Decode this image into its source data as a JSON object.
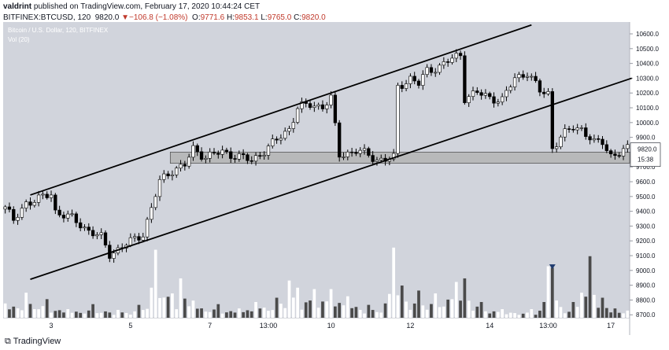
{
  "header": {
    "line1": {
      "author": "valdrint",
      "text": " published on TradingView.com, February 17, 2020 10:44:24 CET"
    },
    "line2": {
      "symbol": "BITFINEX:BTCUSD, 120",
      "last": "9820.0",
      "change_arrow": "▼",
      "change": "−106.8 (−1.08%)",
      "o_label": "O:",
      "o_val": "9771.6",
      "h_label": "H:",
      "h_val": "9853.1",
      "l_label": "L:",
      "l_val": "9765.0",
      "c_label": "C:",
      "c_val": "9820.0"
    }
  },
  "footer": {
    "brand": "TradingView"
  },
  "colors": {
    "background": "#d1d4dc",
    "bull_candle": "#ffffff",
    "bear_candle": "#000000",
    "vol_up": "#ffffff",
    "vol_down": "#4a4a4a",
    "price_tag": "#ffffff",
    "marker": "#1e3a6e",
    "support_zone": "#b4b4b4"
  },
  "chart_data": {
    "type": "candlestick",
    "title": "Bitcoin / U.S. Dollar, 120, BITFINEX",
    "subtitle": "Vol (20)",
    "y_axis": {
      "side": "right",
      "range": [
        8680,
        10680
      ],
      "ticks": [
        8700,
        8800,
        8900,
        9000,
        9100,
        9200,
        9300,
        9400,
        9500,
        9600,
        9700,
        9800,
        9900,
        10000,
        10100,
        10200,
        10300,
        10400,
        10500,
        10600
      ],
      "tick_labels": [
        "8700.0",
        "8800.0",
        "8900.0",
        "9000.0",
        "9100.0",
        "9200.0",
        "9300.0",
        "9400.0",
        "9500.0",
        "9600.0",
        "9700.0",
        "9800.0",
        "9900.0",
        "10000.0",
        "10100.0",
        "10200.0",
        "10300.0",
        "10400.0",
        "10500.0",
        "10600.0"
      ]
    },
    "x_axis": {
      "bars": 150,
      "tick_labels": [
        {
          "bar": 11,
          "label": "3"
        },
        {
          "bar": 30,
          "label": "5"
        },
        {
          "bar": 49,
          "label": "7"
        },
        {
          "bar": 63,
          "label": "13:00"
        },
        {
          "bar": 78,
          "label": "10"
        },
        {
          "bar": 97,
          "label": "12"
        },
        {
          "bar": 116,
          "label": "14"
        },
        {
          "bar": 130,
          "label": "13:00"
        },
        {
          "bar": 145,
          "label": "17"
        }
      ]
    },
    "last_price": {
      "value": 9820.0,
      "label": "9820.0",
      "countdown": "15:38"
    },
    "anchors": [
      [
        0,
        9430,
        5
      ],
      [
        2,
        9330,
        6
      ],
      [
        5,
        9460,
        6
      ],
      [
        8,
        9480,
        5
      ],
      [
        11,
        9520,
        7
      ],
      [
        12,
        9400,
        8
      ],
      [
        16,
        9350,
        5
      ],
      [
        20,
        9270,
        4
      ],
      [
        23,
        9220,
        5
      ],
      [
        25,
        9110,
        6
      ],
      [
        28,
        9160,
        3
      ],
      [
        31,
        9210,
        4
      ],
      [
        33,
        9250,
        5
      ],
      [
        35,
        9420,
        8
      ],
      [
        37,
        9600,
        9
      ],
      [
        40,
        9680,
        7
      ],
      [
        43,
        9710,
        6
      ],
      [
        45,
        9820,
        8
      ],
      [
        48,
        9770,
        5
      ],
      [
        52,
        9800,
        4
      ],
      [
        56,
        9770,
        4
      ],
      [
        59,
        9740,
        5
      ],
      [
        62,
        9810,
        4
      ],
      [
        65,
        9880,
        6
      ],
      [
        68,
        9960,
        6
      ],
      [
        70,
        10100,
        9
      ],
      [
        73,
        10120,
        6
      ],
      [
        76,
        10110,
        5
      ],
      [
        78,
        10160,
        7
      ],
      [
        80,
        9780,
        9
      ],
      [
        84,
        9810,
        4
      ],
      [
        87,
        9780,
        4
      ],
      [
        89,
        9750,
        3
      ],
      [
        91,
        9750,
        3
      ],
      [
        93,
        9760,
        3
      ],
      [
        94,
        10240,
        10
      ],
      [
        97,
        10300,
        6
      ],
      [
        99,
        10260,
        5
      ],
      [
        101,
        10350,
        7
      ],
      [
        104,
        10380,
        6
      ],
      [
        107,
        10430,
        6
      ],
      [
        109,
        10460,
        5
      ],
      [
        110,
        10170,
        8
      ],
      [
        113,
        10200,
        6
      ],
      [
        116,
        10170,
        5
      ],
      [
        119,
        10150,
        5
      ],
      [
        122,
        10300,
        6
      ],
      [
        125,
        10340,
        5
      ],
      [
        128,
        10210,
        5
      ],
      [
        130,
        10200,
        4
      ],
      [
        131,
        9830,
        9
      ],
      [
        133,
        9900,
        5
      ],
      [
        136,
        9970,
        5
      ],
      [
        138,
        9960,
        4
      ],
      [
        141,
        9860,
        5
      ],
      [
        143,
        9870,
        5
      ],
      [
        145,
        9780,
        5
      ],
      [
        147,
        9790,
        4
      ],
      [
        149,
        9820,
        4
      ]
    ],
    "volume": [
      [
        0,
        0.2
      ],
      [
        5,
        0.35
      ],
      [
        10,
        0.26
      ],
      [
        15,
        0.12
      ],
      [
        21,
        0.19
      ],
      [
        27,
        0.11
      ],
      [
        32,
        0.18
      ],
      [
        35,
        0.42
      ],
      [
        36,
        0.95
      ],
      [
        40,
        0.34
      ],
      [
        42,
        0.55
      ],
      [
        45,
        0.24
      ],
      [
        51,
        0.19
      ],
      [
        56,
        0.13
      ],
      [
        60,
        0.22
      ],
      [
        65,
        0.28
      ],
      [
        68,
        0.52
      ],
      [
        70,
        0.42
      ],
      [
        74,
        0.4
      ],
      [
        78,
        0.4
      ],
      [
        82,
        0.3
      ],
      [
        87,
        0.18
      ],
      [
        91,
        0.2
      ],
      [
        93,
        0.98
      ],
      [
        95,
        0.45
      ],
      [
        99,
        0.38
      ],
      [
        103,
        0.34
      ],
      [
        108,
        0.5
      ],
      [
        110,
        0.55
      ],
      [
        114,
        0.22
      ],
      [
        119,
        0.12
      ],
      [
        126,
        0.12
      ],
      [
        129,
        0.22
      ],
      [
        130,
        0.72
      ],
      [
        131,
        0.7
      ],
      [
        133,
        0.15
      ],
      [
        136,
        0.22
      ],
      [
        138,
        0.35
      ],
      [
        140,
        0.86
      ],
      [
        143,
        0.28
      ],
      [
        146,
        0.13
      ],
      [
        149,
        0.1
      ]
    ],
    "volume_ylim": [
      0,
      1
    ],
    "drawings": {
      "channel_top": {
        "from": [
          6,
          9510
        ],
        "to": [
          126,
          10660
        ]
      },
      "channel_bottom": {
        "from": [
          6,
          8940
        ],
        "to": [
          150,
          10300
        ]
      },
      "support_zone": {
        "x_from": 40,
        "x_to": 150,
        "y_low": 9725,
        "y_high": 9800
      }
    },
    "marker": {
      "bar": 131,
      "y": 9025
    }
  }
}
